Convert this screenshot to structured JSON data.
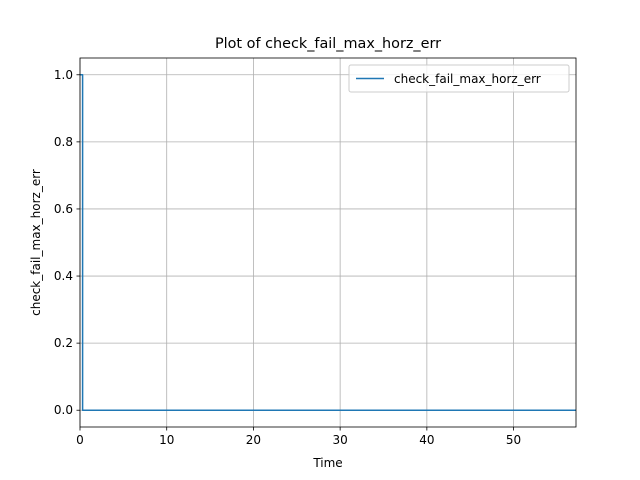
{
  "chart_data": {
    "type": "line",
    "title": "Plot of check_fail_max_horz_err",
    "xlabel": "Time",
    "ylabel": "check_fail_max_horz_err",
    "xlim": [
      0,
      57.2
    ],
    "ylim": [
      -0.05,
      1.05
    ],
    "xticks": [
      0,
      10,
      20,
      30,
      40,
      50
    ],
    "yticks": [
      0.0,
      0.2,
      0.4,
      0.6,
      0.8,
      1.0
    ],
    "xtick_labels": [
      "0",
      "10",
      "20",
      "30",
      "40",
      "50"
    ],
    "ytick_labels": [
      "0.0",
      "0.2",
      "0.4",
      "0.6",
      "0.8",
      "1.0"
    ],
    "grid": true,
    "legend_position": "top-right",
    "series": [
      {
        "name": "check_fail_max_horz_err",
        "color": "#1f77b4",
        "x": [
          0.0,
          0.3,
          0.3,
          57.2
        ],
        "y": [
          1.0,
          1.0,
          0.0,
          0.0
        ]
      }
    ]
  }
}
